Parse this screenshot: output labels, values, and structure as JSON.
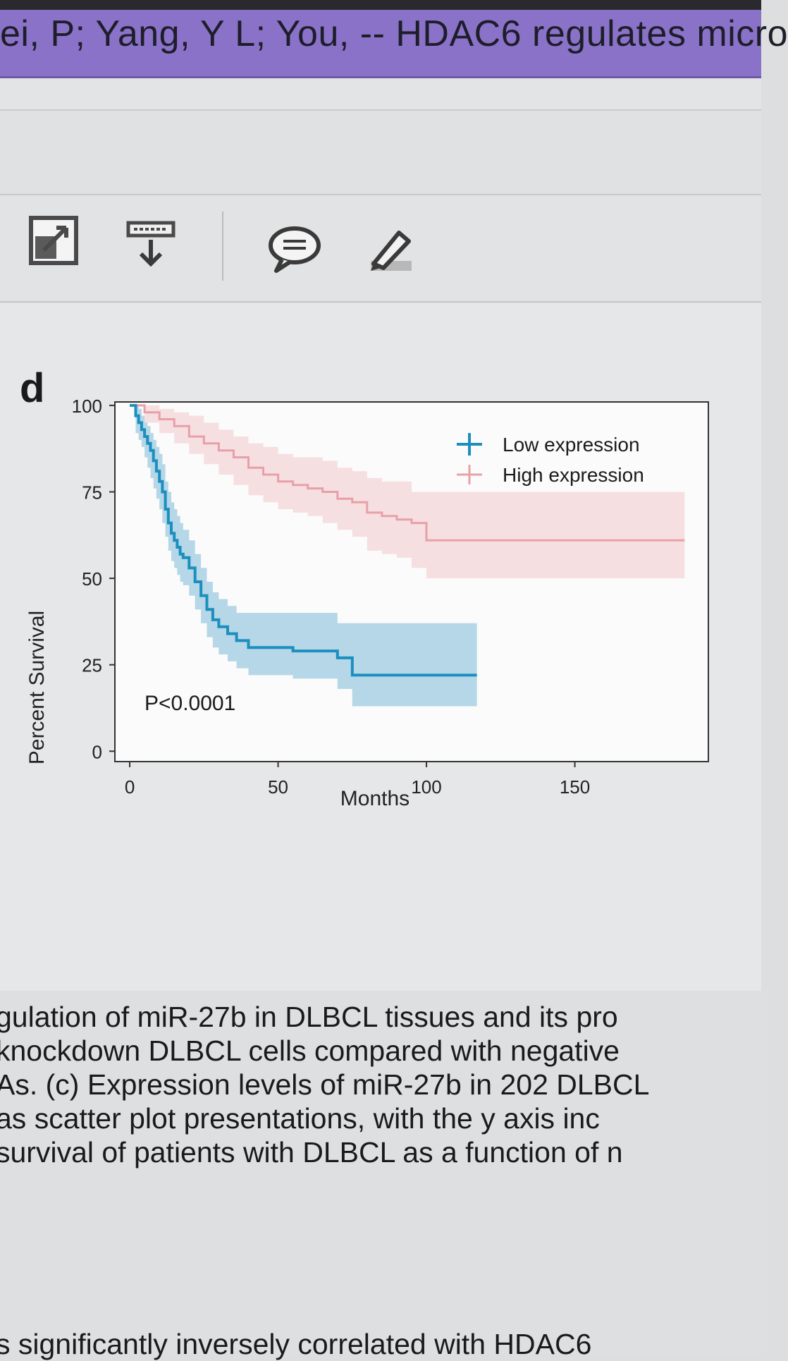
{
  "header": {
    "doc_title": "ei, P; Yang, Y L; You, -- HDAC6 regulates micro"
  },
  "toolbar": {
    "icons": [
      "expand-icon",
      "download-icon",
      "comment-icon",
      "highlight-pen-icon"
    ]
  },
  "figure": {
    "panel_label": "d",
    "p_value": "P<0.0001"
  },
  "chart_data": {
    "type": "line",
    "panel": "d",
    "xlabel": "Months",
    "ylabel": "Percent Survival",
    "xlim": [
      -5,
      195
    ],
    "ylim": [
      -3,
      101
    ],
    "xticks": [
      0,
      50,
      100,
      150
    ],
    "yticks": [
      0,
      25,
      50,
      75,
      100
    ],
    "grid": false,
    "legend": "top-right",
    "annotation": "P<0.0001",
    "series": [
      {
        "name": "Low expression",
        "color": "#1c8fbf",
        "band_color": "#8fc3dc",
        "x": [
          0,
          2,
          3,
          4,
          5,
          6,
          7,
          8,
          9,
          10,
          11,
          12,
          13,
          14,
          15,
          16,
          17,
          18,
          20,
          22,
          24,
          26,
          28,
          30,
          33,
          36,
          40,
          48,
          55,
          65,
          70,
          75,
          85,
          100,
          117
        ],
        "y": [
          100,
          97,
          95,
          93,
          91,
          89,
          87,
          84,
          81,
          78,
          75,
          70,
          66,
          63,
          61,
          59,
          57,
          56,
          53,
          49,
          45,
          41,
          38,
          36,
          34,
          32,
          30,
          30,
          29,
          29,
          27,
          22,
          22,
          22,
          22
        ],
        "lower": [
          100,
          92,
          90,
          88,
          85,
          82,
          79,
          76,
          73,
          70,
          66,
          62,
          58,
          55,
          53,
          51,
          49,
          48,
          45,
          41,
          37,
          33,
          30,
          28,
          26,
          24,
          22,
          22,
          21,
          21,
          18,
          13,
          13,
          13,
          13
        ],
        "upper": [
          100,
          100,
          99,
          97,
          95,
          94,
          92,
          90,
          88,
          86,
          83,
          78,
          75,
          72,
          70,
          68,
          66,
          64,
          61,
          57,
          53,
          49,
          46,
          44,
          42,
          40,
          40,
          40,
          40,
          40,
          37,
          37,
          37,
          37,
          37
        ]
      },
      {
        "name": "High expression",
        "color": "#e8a0a8",
        "band_color": "#f2c8cc",
        "x": [
          0,
          5,
          10,
          15,
          20,
          25,
          30,
          35,
          40,
          45,
          50,
          55,
          60,
          65,
          70,
          75,
          80,
          85,
          90,
          95,
          100,
          110,
          130,
          150,
          175,
          187
        ],
        "y": [
          100,
          98,
          96,
          94,
          91,
          89,
          87,
          85,
          82,
          80,
          78,
          77,
          76,
          75,
          73,
          72,
          69,
          68,
          67,
          66,
          61,
          61,
          61,
          61,
          61,
          61
        ],
        "lower": [
          100,
          95,
          92,
          89,
          86,
          83,
          80,
          77,
          74,
          72,
          70,
          69,
          68,
          66,
          64,
          62,
          58,
          57,
          56,
          53,
          50,
          50,
          50,
          50,
          50,
          50
        ],
        "upper": [
          100,
          100,
          99,
          98,
          97,
          95,
          93,
          91,
          89,
          88,
          86,
          85,
          85,
          84,
          82,
          81,
          79,
          78,
          78,
          75,
          75,
          75,
          75,
          75,
          75,
          75
        ]
      }
    ]
  },
  "caption": {
    "lines": [
      "gulation of miR-27b in DLBCL tissues and its pro",
      "knockdown DLBCL cells compared with negative",
      "As. (c) Expression levels of miR-27b in 202 DLBCL",
      " as scatter plot presentations, with the y axis inc",
      "survival of patients with DLBCL as a function of n",
      "s significantly inversely correlated with HDAC6"
    ]
  }
}
